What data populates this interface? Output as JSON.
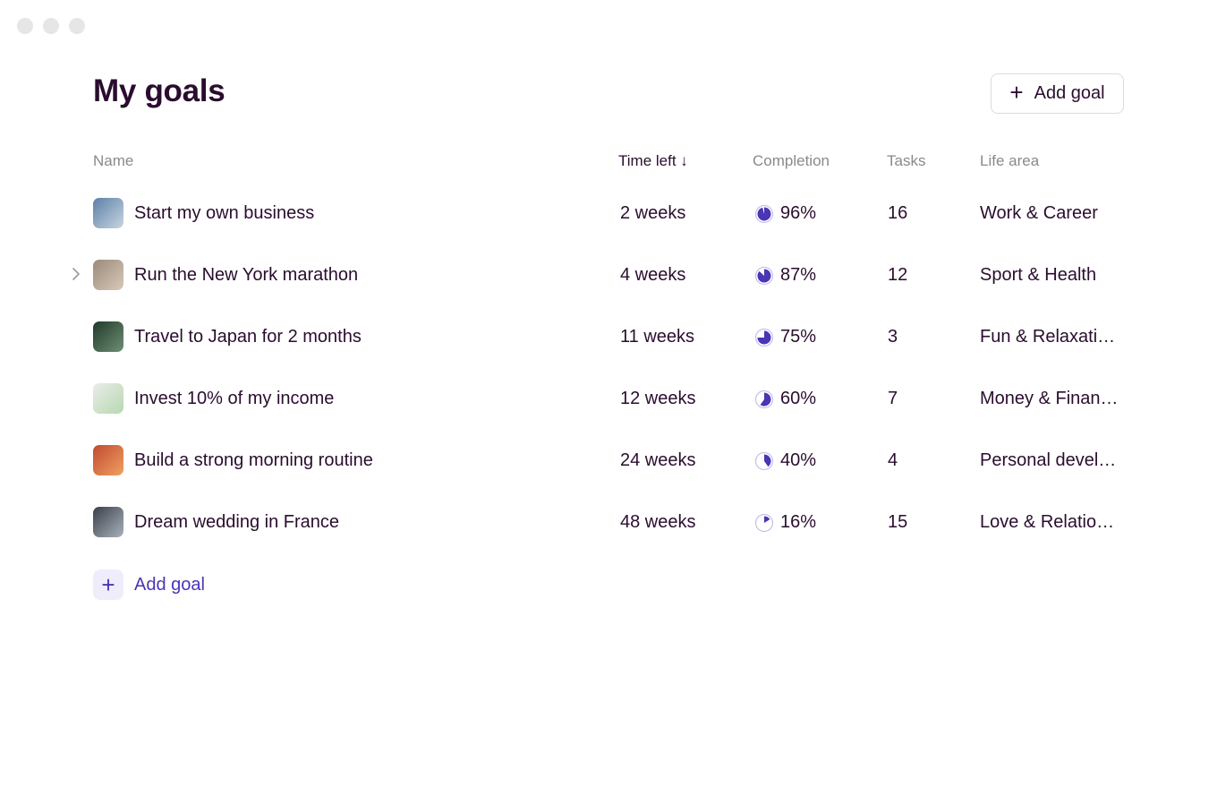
{
  "header": {
    "title": "My goals",
    "add_button_label": "Add goal",
    "add_button_icon": "plus-icon"
  },
  "table": {
    "columns": {
      "name": "Name",
      "time_left": "Time left",
      "completion": "Completion",
      "tasks": "Tasks",
      "life_area": "Life area"
    },
    "sort_icon": "arrow-down-icon",
    "rows": [
      {
        "name": "Start my own business",
        "time_left": "2 weeks",
        "completion": "96%",
        "completion_value": 0.96,
        "tasks": "16",
        "life_area": "Work & Career",
        "thumb_colors": [
          "#5b7fa8",
          "#c9d6e0"
        ]
      },
      {
        "name": "Run the New York marathon",
        "time_left": "4 weeks",
        "completion": "87%",
        "completion_value": 0.87,
        "tasks": "12",
        "life_area": "Sport & Health",
        "thumb_colors": [
          "#9a8a7c",
          "#d8c9b8"
        ]
      },
      {
        "name": "Travel to Japan for 2 months",
        "time_left": "11 weeks",
        "completion": "75%",
        "completion_value": 0.75,
        "tasks": "3",
        "life_area": "Fun & Relaxati…",
        "thumb_colors": [
          "#1f3a2a",
          "#6f8f74"
        ]
      },
      {
        "name": "Invest 10% of my income",
        "time_left": "12 weeks",
        "completion": "60%",
        "completion_value": 0.6,
        "tasks": "7",
        "life_area": "Money & Finan…",
        "thumb_colors": [
          "#e9ece8",
          "#b8d8b0"
        ]
      },
      {
        "name": "Build a strong morning routine",
        "time_left": "24 weeks",
        "completion": "40%",
        "completion_value": 0.4,
        "tasks": "4",
        "life_area": "Personal devel…",
        "thumb_colors": [
          "#c04a32",
          "#f0a060"
        ]
      },
      {
        "name": "Dream wedding in France",
        "time_left": "48 weeks",
        "completion": "16%",
        "completion_value": 0.16,
        "tasks": "15",
        "life_area": "Love & Relatio…",
        "thumb_colors": [
          "#3a4048",
          "#a9b2bc"
        ]
      }
    ]
  },
  "add_row": {
    "label": "Add goal",
    "icon": "plus-icon"
  },
  "colors": {
    "accent": "#4a35b5",
    "accent_light": "#efedfb",
    "text": "#2a0d2e",
    "muted": "#8a8a8a"
  }
}
